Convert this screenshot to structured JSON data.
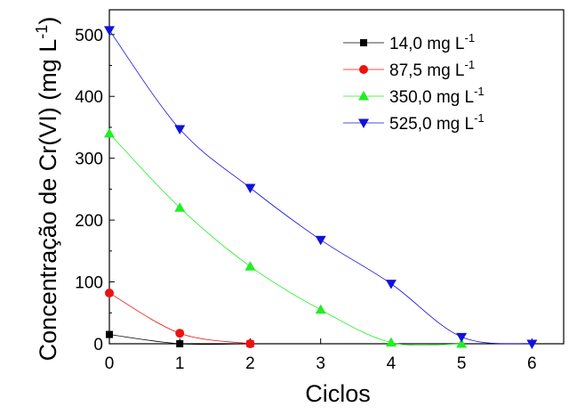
{
  "chart_data": {
    "type": "line",
    "title": "",
    "xlabel": "Ciclos",
    "ylabel": "Concentração de Cr(VI) (mg L",
    "ylabel_sup": "-1",
    "ylabel_close": ")",
    "xlim": [
      0,
      6.45
    ],
    "ylim": [
      0,
      540
    ],
    "xticks": [
      0,
      1,
      2,
      3,
      4,
      5,
      6
    ],
    "yticks": [
      0,
      100,
      200,
      300,
      400,
      500
    ],
    "grid": false,
    "legend_position": "top-right",
    "series": [
      {
        "name": "14,0 mg L",
        "name_sup": "-1",
        "marker": "square",
        "color": "#000000",
        "x": [
          0,
          1,
          2
        ],
        "y": [
          15,
          0,
          0
        ]
      },
      {
        "name": "87,5 mg L",
        "name_sup": "-1",
        "marker": "circle",
        "color": "#ee1111",
        "x": [
          0,
          1,
          2
        ],
        "y": [
          82,
          17,
          0
        ]
      },
      {
        "name": "350,0 mg L",
        "name_sup": "-1",
        "marker": "triangle-up",
        "color": "#22ee22",
        "x": [
          0,
          1,
          2,
          3,
          4,
          5
        ],
        "y": [
          340,
          220,
          125,
          55,
          2,
          0
        ]
      },
      {
        "name": "525,0 mg L",
        "name_sup": "-1",
        "marker": "triangle-down",
        "color": "#1111dd",
        "x": [
          0,
          1,
          2,
          3,
          4,
          5,
          6
        ],
        "y": [
          507,
          347,
          252,
          168,
          97,
          11,
          0
        ]
      }
    ]
  }
}
